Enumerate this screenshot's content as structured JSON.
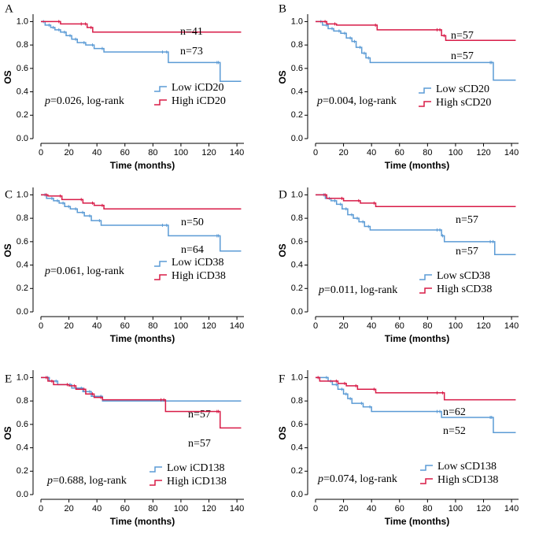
{
  "chart_data": [
    {
      "type": "line",
      "panel_label": "A",
      "xlabel": "Time (months)",
      "ylabel": "OS",
      "xlim": [
        0,
        145
      ],
      "ylim": [
        0,
        1.05
      ],
      "xticks": [
        "0",
        "20",
        "40",
        "60",
        "80",
        "100",
        "120",
        "140"
      ],
      "yticks": [
        "0.0",
        "0.2",
        "0.4",
        "0.6",
        "0.8",
        "1.0"
      ],
      "pvalue_label": "p",
      "pvalue_text": "=0.026, log-rank",
      "series": [
        {
          "name": "Low iCD20",
          "color": "#5b9bd5",
          "n_label": "n=73",
          "steps": [
            [
              0,
              1.0
            ],
            [
              3,
              0.97
            ],
            [
              7,
              0.95
            ],
            [
              10,
              0.93
            ],
            [
              14,
              0.91
            ],
            [
              18,
              0.88
            ],
            [
              22,
              0.85
            ],
            [
              26,
              0.82
            ],
            [
              32,
              0.8
            ],
            [
              38,
              0.77
            ],
            [
              45,
              0.74
            ],
            [
              88,
              0.74
            ],
            [
              91,
              0.65
            ],
            [
              127,
              0.65
            ],
            [
              128,
              0.49
            ],
            [
              143,
              0.49
            ]
          ]
        },
        {
          "name": "High iCD20",
          "color": "#d81b47",
          "n_label": "n=41",
          "steps": [
            [
              0,
              1.0
            ],
            [
              14,
              0.98
            ],
            [
              30,
              0.98
            ],
            [
              33,
              0.95
            ],
            [
              37,
              0.91
            ],
            [
              143,
              0.91
            ]
          ]
        }
      ]
    },
    {
      "type": "line",
      "panel_label": "B",
      "xlabel": "Time (months)",
      "ylabel": "OS",
      "xlim": [
        0,
        145
      ],
      "ylim": [
        0,
        1.05
      ],
      "xticks": [
        "0",
        "20",
        "40",
        "60",
        "80",
        "100",
        "120",
        "140"
      ],
      "yticks": [
        "0.0",
        "0.2",
        "0.4",
        "0.6",
        "0.8",
        "1.0"
      ],
      "pvalue_label": "p",
      "pvalue_text": "=0.004, log-rank",
      "series": [
        {
          "name": "Low sCD20",
          "color": "#5b9bd5",
          "n_label": "n=57",
          "steps": [
            [
              0,
              1.0
            ],
            [
              5,
              0.97
            ],
            [
              9,
              0.94
            ],
            [
              13,
              0.92
            ],
            [
              18,
              0.9
            ],
            [
              22,
              0.86
            ],
            [
              26,
              0.83
            ],
            [
              29,
              0.78
            ],
            [
              33,
              0.73
            ],
            [
              36,
              0.69
            ],
            [
              39,
              0.65
            ],
            [
              126,
              0.65
            ],
            [
              127,
              0.5
            ],
            [
              143,
              0.5
            ]
          ]
        },
        {
          "name": "High sCD20",
          "color": "#d81b47",
          "n_label": "n=57",
          "steps": [
            [
              0,
              1.0
            ],
            [
              8,
              0.98
            ],
            [
              15,
              0.97
            ],
            [
              44,
              0.93
            ],
            [
              88,
              0.93
            ],
            [
              90,
              0.88
            ],
            [
              93,
              0.84
            ],
            [
              143,
              0.84
            ]
          ]
        }
      ]
    },
    {
      "type": "line",
      "panel_label": "C",
      "xlabel": "Time (months)",
      "ylabel": "OS",
      "xlim": [
        0,
        145
      ],
      "ylim": [
        0,
        1.05
      ],
      "xticks": [
        "0",
        "20",
        "40",
        "60",
        "80",
        "100",
        "120",
        "140"
      ],
      "yticks": [
        "0.0",
        "0.2",
        "0.4",
        "0.6",
        "0.8",
        "1.0"
      ],
      "pvalue_label": "p",
      "pvalue_text": "=0.061, log-rank",
      "series": [
        {
          "name": "Low iCD38",
          "color": "#5b9bd5",
          "n_label": "n=64",
          "steps": [
            [
              0,
              1.0
            ],
            [
              4,
              0.97
            ],
            [
              9,
              0.95
            ],
            [
              13,
              0.93
            ],
            [
              17,
              0.9
            ],
            [
              21,
              0.88
            ],
            [
              26,
              0.85
            ],
            [
              31,
              0.82
            ],
            [
              36,
              0.78
            ],
            [
              43,
              0.74
            ],
            [
              88,
              0.74
            ],
            [
              91,
              0.65
            ],
            [
              127,
              0.65
            ],
            [
              128,
              0.52
            ],
            [
              143,
              0.52
            ]
          ]
        },
        {
          "name": "High iCD38",
          "color": "#d81b47",
          "n_label": "n=50",
          "steps": [
            [
              0,
              1.0
            ],
            [
              5,
              0.99
            ],
            [
              15,
              0.96
            ],
            [
              30,
              0.93
            ],
            [
              38,
              0.91
            ],
            [
              45,
              0.88
            ],
            [
              143,
              0.88
            ]
          ]
        }
      ]
    },
    {
      "type": "line",
      "panel_label": "D",
      "xlabel": "Time (months)",
      "ylabel": "OS",
      "xlim": [
        0,
        145
      ],
      "ylim": [
        0,
        1.05
      ],
      "xticks": [
        "0",
        "20",
        "40",
        "60",
        "80",
        "100",
        "120",
        "140"
      ],
      "yticks": [
        "0.0",
        "0.2",
        "0.4",
        "0.6",
        "0.8",
        "1.0"
      ],
      "pvalue_label": "p",
      "pvalue_text": "=0.011, log-rank",
      "series": [
        {
          "name": "Low sCD38",
          "color": "#5b9bd5",
          "n_label": "n=57",
          "steps": [
            [
              0,
              1.0
            ],
            [
              7,
              0.97
            ],
            [
              11,
              0.95
            ],
            [
              15,
              0.92
            ],
            [
              19,
              0.88
            ],
            [
              23,
              0.83
            ],
            [
              27,
              0.8
            ],
            [
              31,
              0.77
            ],
            [
              35,
              0.73
            ],
            [
              39,
              0.7
            ],
            [
              88,
              0.7
            ],
            [
              90,
              0.65
            ],
            [
              92,
              0.6
            ],
            [
              126,
              0.6
            ],
            [
              128,
              0.49
            ],
            [
              143,
              0.49
            ]
          ]
        },
        {
          "name": "High sCD38",
          "color": "#d81b47",
          "n_label": "n=57",
          "steps": [
            [
              0,
              1.0
            ],
            [
              8,
              0.97
            ],
            [
              20,
              0.95
            ],
            [
              32,
              0.93
            ],
            [
              43,
              0.9
            ],
            [
              143,
              0.9
            ]
          ]
        }
      ]
    },
    {
      "type": "line",
      "panel_label": "E",
      "xlabel": "Time (months)",
      "ylabel": "OS",
      "xlim": [
        0,
        145
      ],
      "ylim": [
        0,
        1.05
      ],
      "xticks": [
        "0",
        "20",
        "40",
        "60",
        "80",
        "100",
        "120",
        "140"
      ],
      "yticks": [
        "0.0",
        "0.2",
        "0.4",
        "0.6",
        "0.8",
        "1.0"
      ],
      "pvalue_label": "p",
      "pvalue_text": "=0.688, log-rank",
      "series": [
        {
          "name": "Low iCD138",
          "color": "#5b9bd5",
          "n_label": "n=57",
          "steps": [
            [
              0,
              1.0
            ],
            [
              6,
              0.97
            ],
            [
              12,
              0.94
            ],
            [
              22,
              0.91
            ],
            [
              30,
              0.88
            ],
            [
              36,
              0.84
            ],
            [
              44,
              0.8
            ],
            [
              143,
              0.8
            ]
          ]
        },
        {
          "name": "High iCD138",
          "color": "#d81b47",
          "n_label": "n=57",
          "steps": [
            [
              0,
              1.0
            ],
            [
              5,
              0.97
            ],
            [
              9,
              0.94
            ],
            [
              20,
              0.93
            ],
            [
              25,
              0.9
            ],
            [
              32,
              0.86
            ],
            [
              38,
              0.83
            ],
            [
              44,
              0.81
            ],
            [
              87,
              0.81
            ],
            [
              89,
              0.71
            ],
            [
              127,
              0.71
            ],
            [
              128,
              0.57
            ],
            [
              143,
              0.57
            ]
          ]
        }
      ]
    },
    {
      "type": "line",
      "panel_label": "F",
      "xlabel": "Time (months)",
      "ylabel": "OS",
      "xlim": [
        0,
        145
      ],
      "ylim": [
        0,
        1.05
      ],
      "xticks": [
        "0",
        "20",
        "40",
        "60",
        "80",
        "100",
        "120",
        "140"
      ],
      "yticks": [
        "0.0",
        "0.2",
        "0.4",
        "0.6",
        "0.8",
        "1.0"
      ],
      "pvalue_label": "p",
      "pvalue_text": "=0.074, log-rank",
      "series": [
        {
          "name": "Low sCD138",
          "color": "#5b9bd5",
          "n_label": "n=52",
          "steps": [
            [
              0,
              1.0
            ],
            [
              9,
              0.97
            ],
            [
              12,
              0.94
            ],
            [
              16,
              0.9
            ],
            [
              20,
              0.86
            ],
            [
              23,
              0.82
            ],
            [
              26,
              0.78
            ],
            [
              34,
              0.75
            ],
            [
              40,
              0.71
            ],
            [
              88,
              0.71
            ],
            [
              90,
              0.66
            ],
            [
              126,
              0.66
            ],
            [
              127,
              0.53
            ],
            [
              143,
              0.53
            ]
          ]
        },
        {
          "name": "High sCD138",
          "color": "#d81b47",
          "n_label": "n=62",
          "steps": [
            [
              0,
              1.0
            ],
            [
              3,
              0.97
            ],
            [
              16,
              0.95
            ],
            [
              22,
              0.93
            ],
            [
              30,
              0.9
            ],
            [
              43,
              0.87
            ],
            [
              88,
              0.87
            ],
            [
              92,
              0.81
            ],
            [
              143,
              0.81
            ]
          ]
        }
      ]
    }
  ]
}
